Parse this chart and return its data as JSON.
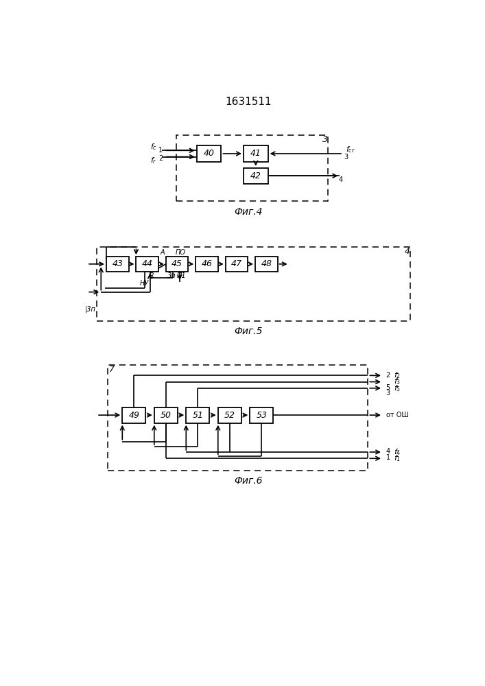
{
  "title": "1631511",
  "fig4_label": "Фиг.4",
  "fig5_label": "Фиг.5",
  "fig6_label": "Фиг.6",
  "bg_color": "#ffffff"
}
